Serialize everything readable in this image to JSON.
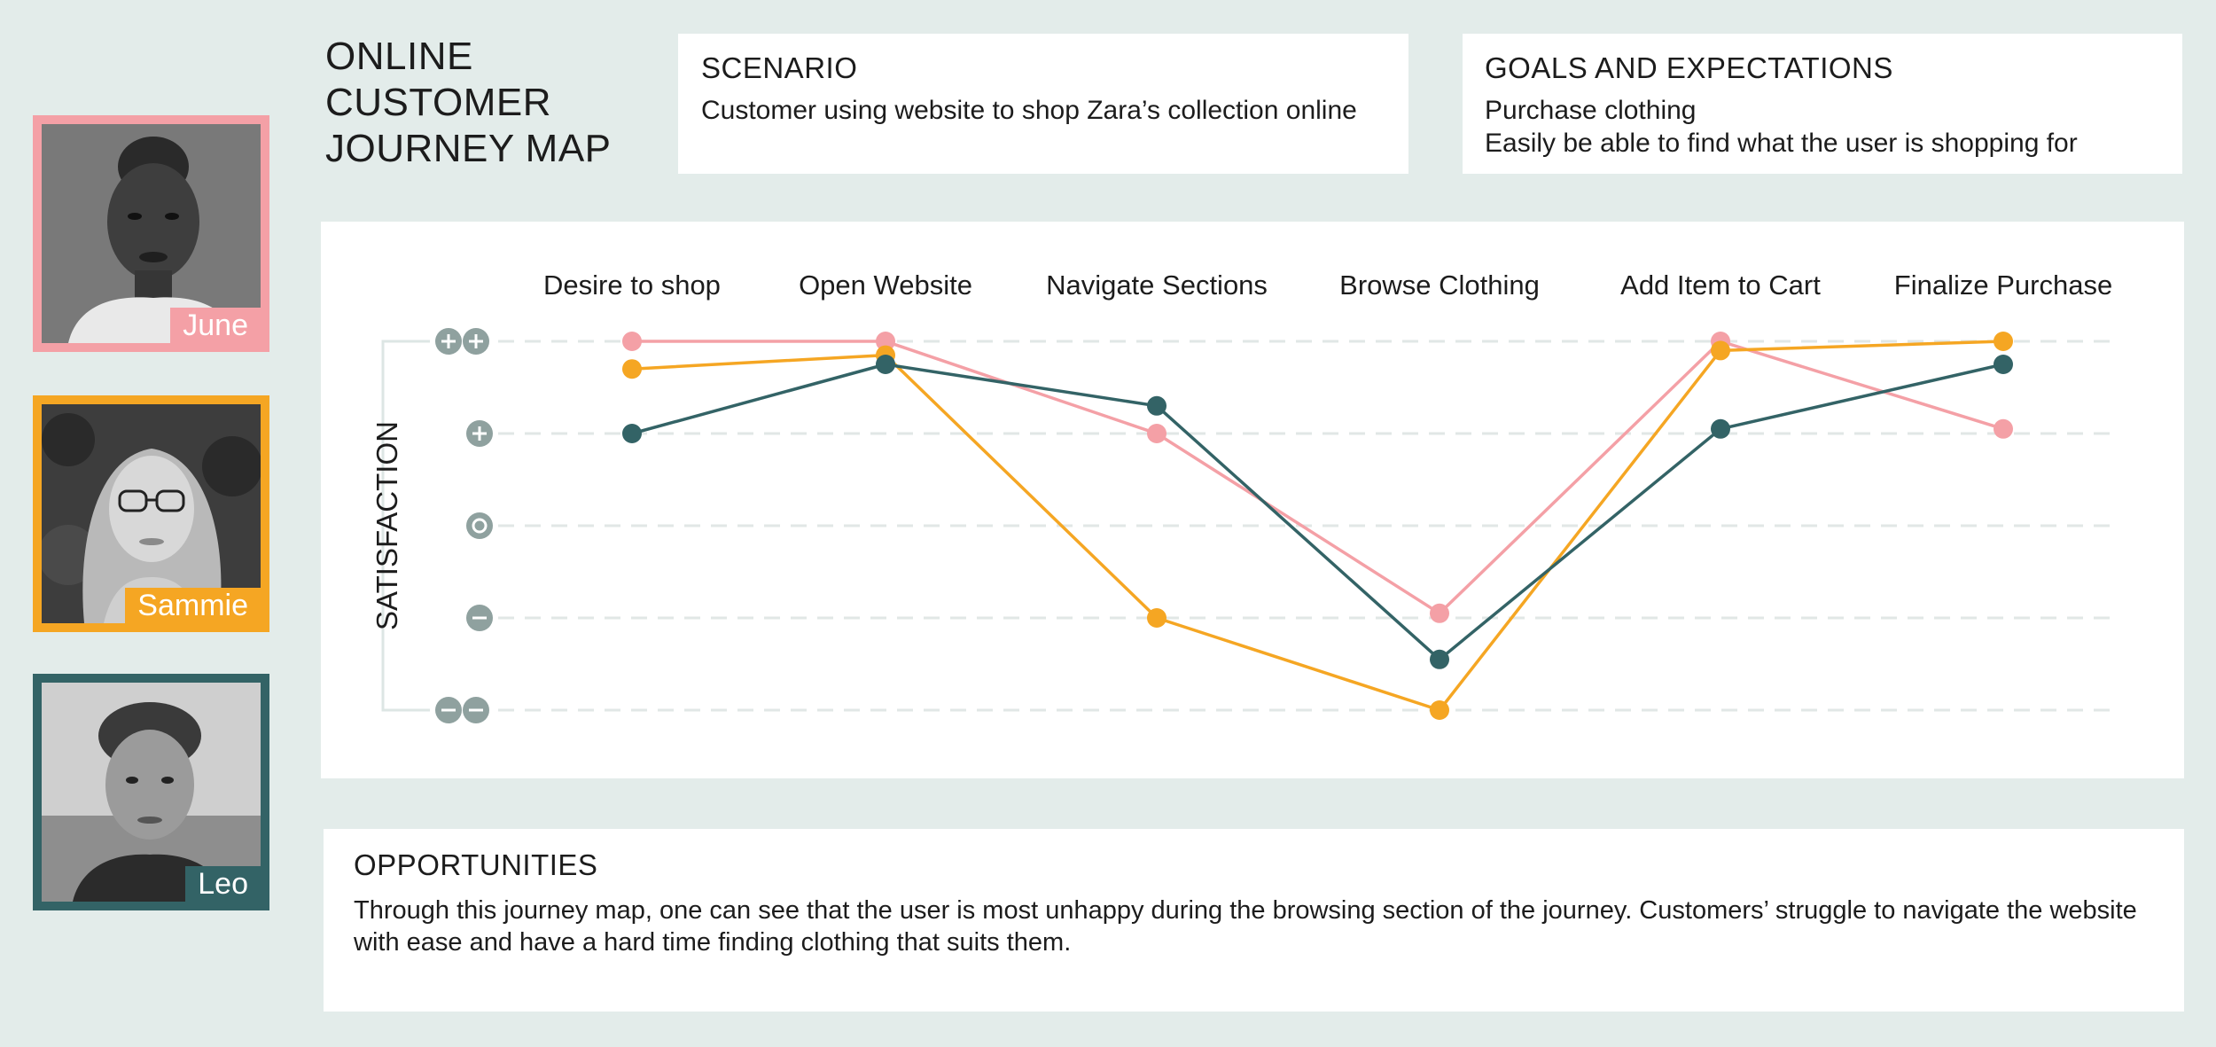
{
  "title_lines": [
    "ONLINE",
    "CUSTOMER",
    "JOURNEY MAP"
  ],
  "scenario": {
    "heading": "SCENARIO",
    "text": "Customer using website to shop Zara’s collection online"
  },
  "goals": {
    "heading": "GOALS AND EXPECTATIONS",
    "lines": [
      "Purchase clothing",
      "Easily be able to find what the user is shopping for"
    ]
  },
  "personas": [
    {
      "name": "June",
      "color": "#f4a0a6"
    },
    {
      "name": "Sammie",
      "color": "#f5a623"
    },
    {
      "name": "Leo",
      "color": "#336366"
    }
  ],
  "opportunities": {
    "heading": "OPPORTUNITIES",
    "text": "Through this journey map, one can see that the user is most unhappy during the browsing section of the journey. Customers’ struggle to navigate the website with ease and have a hard time finding clothing that suits them."
  },
  "chart_data": {
    "type": "line",
    "categories": [
      "Desire to shop",
      "Open Website",
      "Navigate Sections",
      "Browse Clothing",
      "Add Item to Cart",
      "Finalize Purchase"
    ],
    "ylabel": "SATISFACTION",
    "ylim": [
      -2,
      2
    ],
    "y_levels": [
      {
        "value": 2,
        "icon": "double-plus-icon"
      },
      {
        "value": 1,
        "icon": "plus-icon"
      },
      {
        "value": 0,
        "icon": "neutral-icon"
      },
      {
        "value": -1,
        "icon": "minus-icon"
      },
      {
        "value": -2,
        "icon": "double-minus-icon"
      }
    ],
    "grid": "horizontal dashed",
    "series": [
      {
        "name": "June",
        "color": "#f4a0a6",
        "values": [
          2,
          2,
          1,
          -0.95,
          2,
          1.05
        ]
      },
      {
        "name": "Sammie",
        "color": "#f5a623",
        "values": [
          1.7,
          1.85,
          -1,
          -2,
          1.9,
          2
        ]
      },
      {
        "name": "Leo",
        "color": "#336366",
        "values": [
          1,
          1.75,
          1.3,
          -1.45,
          1.05,
          1.75
        ]
      }
    ]
  }
}
